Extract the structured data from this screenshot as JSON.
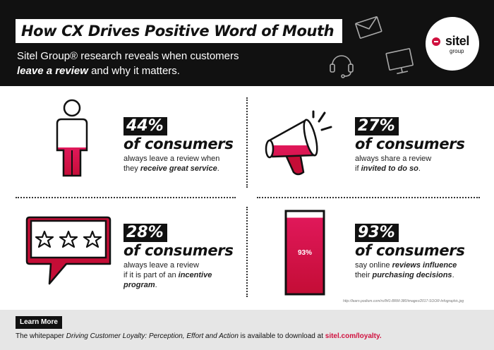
{
  "header": {
    "title": "How CX Drives Positive Word of Mouth",
    "subtitle_line1": "Sitel Group® research reveals when customers",
    "subtitle_emph": "leave a review",
    "subtitle_rest": " and why it matters.",
    "logo_word": "sitel",
    "logo_sub": "group",
    "icons": [
      "envelope-icon",
      "headset-icon",
      "monitor-icon"
    ]
  },
  "stats": [
    {
      "percent": "44%",
      "consumers": "of consumers",
      "desc_line1": "always leave a review when",
      "desc_pre": "they ",
      "desc_emph": "receive great service",
      "desc_post": ".",
      "icon": "person-icon"
    },
    {
      "percent": "27%",
      "consumers": "of consumers",
      "desc_line1": "always share a review",
      "desc_pre": "if ",
      "desc_emph": "invited to do so",
      "desc_post": ".",
      "icon": "megaphone-icon"
    },
    {
      "percent": "28%",
      "consumers": "of consumers",
      "desc_line1": "always leave a review",
      "desc_line2_pre": "if it is part of an ",
      "desc_line2_emph": "incentive",
      "desc_line3_emph": "program",
      "desc_line3_post": ".",
      "icon": "star-rating-bubble-icon"
    },
    {
      "percent": "93%",
      "consumers": "of consumers",
      "desc_line1_pre": "say online ",
      "desc_line1_emph": "reviews influence",
      "desc_line2_pre": "their ",
      "desc_line2_emph": "purchasing decisions",
      "desc_line2_post": ".",
      "bar_label": "93%",
      "bar_fill": 0.93,
      "icon": "fill-bar-icon"
    }
  ],
  "person_fill": 0.44,
  "megaphone_fill": 0.27,
  "source_text": "http://learn.podium.com/rs/841-BRM-380/images/2017-SOOR-Infographic.jpg",
  "footer": {
    "button": "Learn More",
    "text_pre": "The whitepaper ",
    "text_italic": "Driving Customer Loyalty: Perception, Effort and Action",
    "text_mid": " is available to download at ",
    "url": "sitel.com/loyalty."
  },
  "colors": {
    "accent": "#d0113f",
    "dark": "#111111",
    "footer_bg": "#e6e6e6"
  }
}
